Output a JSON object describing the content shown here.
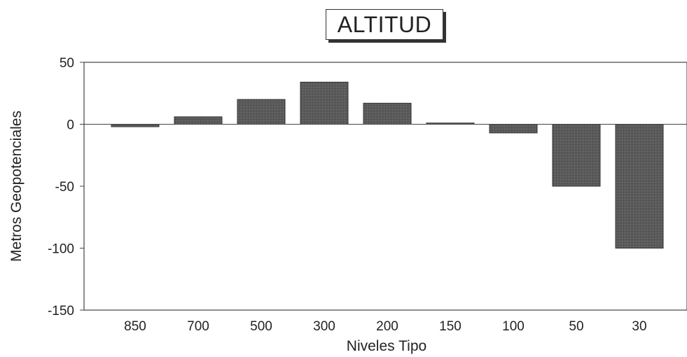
{
  "chart_data": {
    "type": "bar",
    "title": "ALTITUD",
    "xlabel": "Niveles Tipo",
    "ylabel": "Metros Geopotenciales",
    "categories": [
      "850",
      "700",
      "500",
      "300",
      "200",
      "150",
      "100",
      "50",
      "30"
    ],
    "values": [
      -2,
      6,
      20,
      34,
      17,
      1,
      -7,
      -50,
      -100
    ],
    "ylim": [
      -150,
      50
    ],
    "yticks": [
      50,
      0,
      -50,
      -100,
      -150
    ],
    "ytick_labels": [
      "50",
      "0",
      "-50",
      "-100",
      "-150"
    ],
    "grid": false,
    "legend": "none",
    "bar_color": "#5a5a5a"
  }
}
